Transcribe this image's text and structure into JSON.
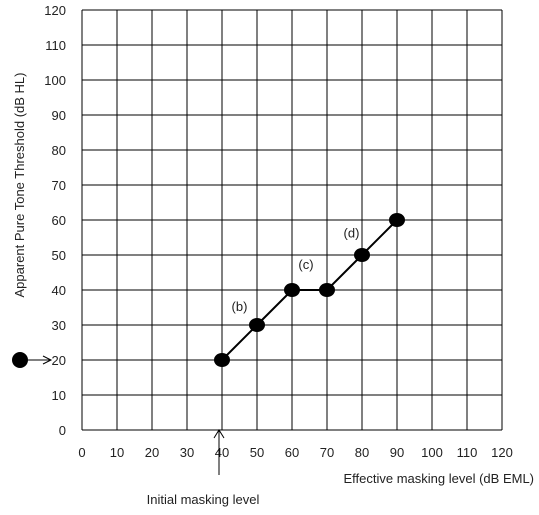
{
  "chart_data": {
    "type": "line",
    "xlabel": "Effective masking level (dB EML)",
    "ylabel": "Apparent Pure Tone Threshold (dB HL)",
    "xlim": [
      0,
      120
    ],
    "ylim": [
      0,
      120
    ],
    "xticks": [
      0,
      10,
      20,
      30,
      40,
      50,
      60,
      70,
      80,
      90,
      100,
      110,
      120
    ],
    "yticks": [
      0,
      10,
      20,
      30,
      40,
      50,
      60,
      70,
      80,
      90,
      100,
      110,
      120
    ],
    "grid": true,
    "series": [
      {
        "x": [
          40,
          50,
          60,
          70,
          80,
          90
        ],
        "y": [
          20,
          30,
          40,
          40,
          50,
          60
        ]
      }
    ],
    "annotations": [
      {
        "text": "(b)",
        "x": 45,
        "y": 34
      },
      {
        "text": "(c)",
        "x": 64,
        "y": 46
      },
      {
        "text": "(d)",
        "x": 77,
        "y": 55
      }
    ],
    "initial_marker_y": 20,
    "initial_masking_label": "Initial masking level",
    "initial_masking_x": 40
  }
}
